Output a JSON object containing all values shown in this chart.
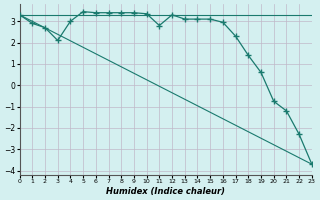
{
  "xlabel": "Humidex (Indice chaleur)",
  "bg_color": "#d4f0f0",
  "grid_color": "#c0b8c8",
  "line_color": "#1a7a6e",
  "xlim": [
    0,
    23
  ],
  "ylim": [
    -4.2,
    3.8
  ],
  "yticks": [
    -4,
    -3,
    -2,
    -1,
    0,
    1,
    2,
    3
  ],
  "xticks": [
    0,
    1,
    2,
    3,
    4,
    5,
    6,
    7,
    8,
    9,
    10,
    11,
    12,
    13,
    14,
    15,
    16,
    17,
    18,
    19,
    20,
    21,
    22,
    23
  ],
  "line1_x": [
    0,
    1,
    2,
    3,
    4,
    5,
    6,
    7,
    8,
    9,
    10,
    11,
    12,
    13,
    14,
    15,
    16,
    17,
    18,
    19,
    20,
    21,
    22,
    23
  ],
  "line1_y": [
    3.3,
    2.9,
    2.7,
    2.1,
    3.0,
    3.45,
    3.4,
    3.4,
    3.4,
    3.4,
    3.35,
    2.8,
    3.3,
    3.1,
    3.1,
    3.1,
    2.95,
    2.3,
    1.4,
    0.6,
    -0.75,
    -1.2,
    -2.3,
    -3.7
  ],
  "line2_x": [
    0,
    1,
    2,
    3,
    4,
    5,
    6,
    7,
    8,
    9,
    10,
    11,
    12,
    13,
    14,
    15,
    16,
    17,
    18,
    19,
    20,
    21,
    22,
    23
  ],
  "line2_y": [
    3.3,
    3.3,
    3.3,
    3.3,
    3.3,
    3.3,
    3.3,
    3.3,
    3.3,
    3.3,
    3.3,
    3.3,
    3.3,
    3.3,
    3.3,
    3.3,
    3.3,
    3.3,
    3.3,
    3.3,
    3.3,
    3.3,
    3.3,
    3.3
  ],
  "line3_x": [
    0,
    23
  ],
  "line3_y": [
    3.3,
    -3.7
  ]
}
